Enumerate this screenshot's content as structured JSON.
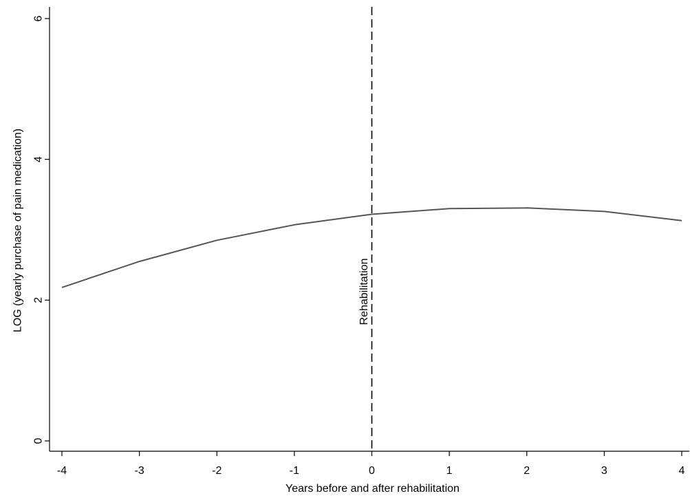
{
  "chart_data": {
    "type": "line",
    "title": "",
    "xlabel": "Years before and after rehabilitation",
    "ylabel": "LOG (yearly purchase of pain medication)",
    "xlim": [
      -4,
      4
    ],
    "ylim": [
      0,
      6
    ],
    "x_ticks": [
      "-4",
      "-3",
      "-2",
      "-1",
      "0",
      "1",
      "2",
      "3",
      "4"
    ],
    "y_ticks": [
      "0",
      "2",
      "4",
      "6"
    ],
    "grid": false,
    "legend": "none",
    "series": [
      {
        "x": [
          -4,
          -3,
          -2,
          -1,
          0,
          1,
          2,
          3,
          4
        ],
        "y": [
          2.18,
          2.55,
          2.85,
          3.07,
          3.22,
          3.3,
          3.31,
          3.26,
          3.13
        ],
        "color": "#555555"
      }
    ],
    "annotations": [
      {
        "type": "vline",
        "x": 0,
        "label": "Rehabilitation",
        "style": "dashed",
        "color": "#000000"
      }
    ]
  }
}
